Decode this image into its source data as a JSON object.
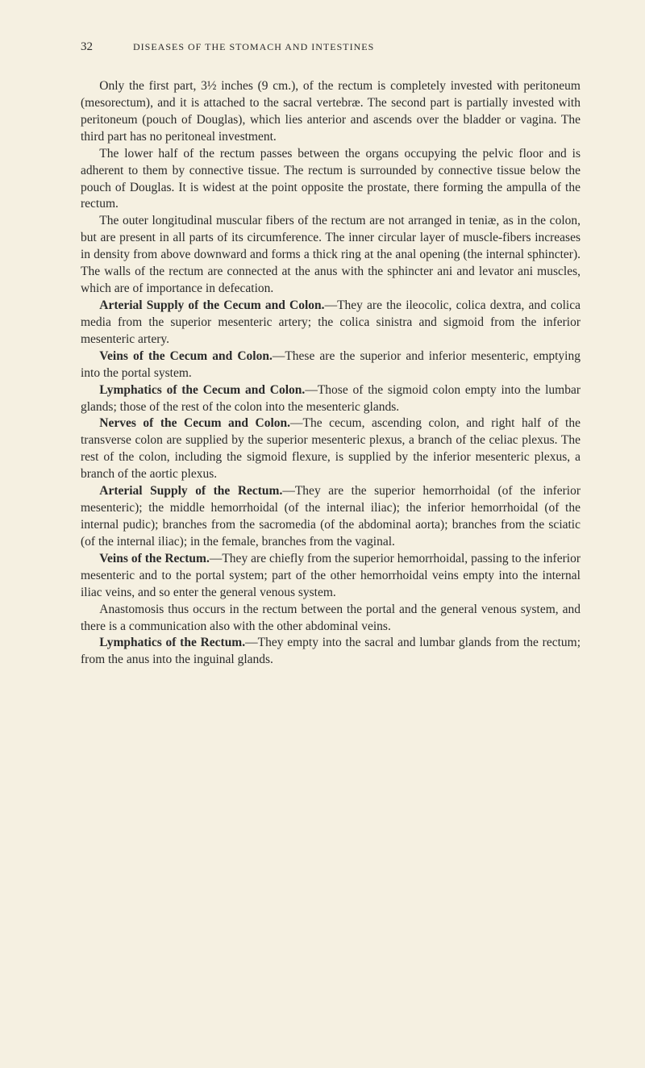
{
  "header": {
    "page_number": "32",
    "running_title": "DISEASES OF THE STOMACH AND INTESTINES"
  },
  "paragraphs": {
    "p1": "Only the first part, 3½ inches (9 cm.), of the rectum is completely invested with peritoneum (mesorectum), and it is attached to the sacral vertebræ. The second part is partially invested with peritoneum (pouch of Douglas), which lies anterior and ascends over the bladder or vagina. The third part has no peritoneal investment.",
    "p2": "The lower half of the rectum passes between the organs occupying the pelvic floor and is adherent to them by connective tissue. The rectum is surrounded by connective tissue below the pouch of Douglas. It is widest at the point opposite the prostate, there forming the ampulla of the rectum.",
    "p3": "The outer longitudinal muscular fibers of the rectum are not arranged in teniæ, as in the colon, but are present in all parts of its circumference. The inner circular layer of muscle-fibers increases in density from above downward and forms a thick ring at the anal opening (the internal sphincter). The walls of the rectum are connected at the anus with the sphincter ani and levator ani muscles, which are of importance in defecation.",
    "s4_title": "Arterial Supply of the Cecum and Colon.",
    "s4_body": "—They are the ileocolic, colica dextra, and colica media from the superior mesenteric artery; the colica sinistra and sigmoid from the inferior mesenteric artery.",
    "s5_title": "Veins of the Cecum and Colon.",
    "s5_body": "—These are the superior and inferior mesenteric, emptying into the portal system.",
    "s6_title": "Lymphatics of the Cecum and Colon.",
    "s6_body": "—Those of the sigmoid colon empty into the lumbar glands; those of the rest of the colon into the mesenteric glands.",
    "s7_title": "Nerves of the Cecum and Colon.",
    "s7_body": "—The cecum, ascending colon, and right half of the transverse colon are supplied by the superior mesenteric plexus, a branch of the celiac plexus. The rest of the colon, including the sigmoid flexure, is supplied by the inferior mesenteric plexus, a branch of the aortic plexus.",
    "s8_title": "Arterial Supply of the Rectum.",
    "s8_body": "—They are the superior hemorrhoidal (of the inferior mesenteric); the middle hemorrhoidal (of the internal iliac); the inferior hemorrhoidal (of the internal pudic); branches from the sacromedia (of the abdominal aorta); branches from the sciatic (of the internal iliac); in the female, branches from the vaginal.",
    "s9_title": "Veins of the Rectum.",
    "s9_body": "—They are chiefly from the superior hemorrhoidal, passing to the inferior mesenteric and to the portal system; part of the other hemorrhoidal veins empty into the internal iliac veins, and so enter the general venous system.",
    "p10": "Anastomosis thus occurs in the rectum between the portal and the general venous system, and there is a communication also with the other abdominal veins.",
    "s11_title": "Lymphatics of the Rectum.",
    "s11_body": "—They empty into the sacral and lumbar glands from the rectum; from the anus into the inguinal glands."
  }
}
